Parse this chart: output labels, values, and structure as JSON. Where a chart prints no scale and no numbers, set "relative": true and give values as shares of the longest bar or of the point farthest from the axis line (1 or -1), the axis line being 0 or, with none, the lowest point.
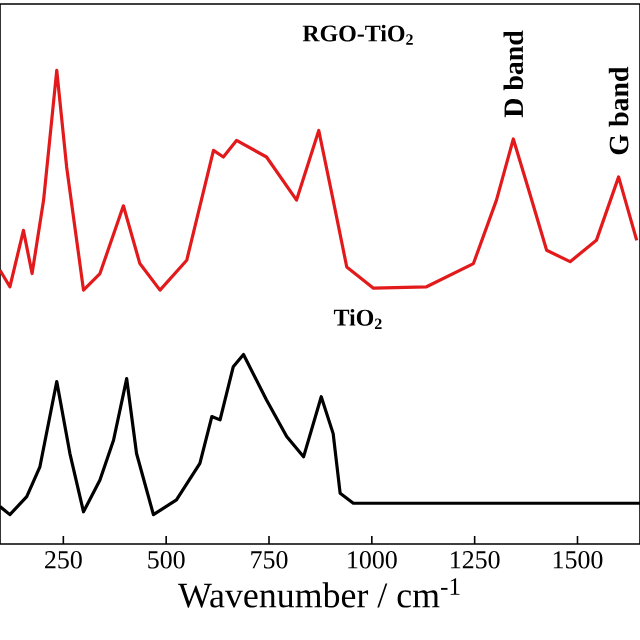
{
  "chart_data": {
    "type": "line",
    "relative": true,
    "xlabel": "Wavenumber / cm$^{-1}$",
    "xlim": [
      96,
      1652
    ],
    "xticks": [
      250,
      500,
      750,
      1000,
      1250,
      1500
    ],
    "series": [
      {
        "name": "**RGO-TiO$_{2}$**",
        "color": "#e31a1c",
        "x": [
          96,
          120,
          153,
          174,
          202,
          234,
          258,
          299,
          339,
          396,
          436,
          485,
          550,
          615,
          639,
          671,
          744,
          817,
          871,
          906,
          939,
          1004,
          1133,
          1247,
          1303,
          1344,
          1384,
          1425,
          1482,
          1546,
          1600,
          1644
        ],
        "values": [
          0.578,
          0.543,
          0.662,
          0.571,
          0.726,
          1.0,
          0.796,
          0.536,
          0.571,
          0.714,
          0.592,
          0.536,
          0.599,
          0.831,
          0.817,
          0.852,
          0.817,
          0.726,
          0.873,
          0.726,
          0.585,
          0.54,
          0.543,
          0.592,
          0.726,
          0.855,
          0.74,
          0.62,
          0.596,
          0.641,
          0.775,
          0.641
        ]
      },
      {
        "name": "**TiO$_{2}$**",
        "color": "#000000",
        "x": [
          96,
          120,
          161,
          193,
          234,
          266,
          299,
          339,
          372,
          404,
          428,
          469,
          525,
          582,
          611,
          631,
          663,
          688,
          744,
          793,
          834,
          877,
          906,
          923,
          955,
          1652
        ],
        "values": [
          0.079,
          0.062,
          0.1,
          0.163,
          0.343,
          0.191,
          0.068,
          0.135,
          0.219,
          0.349,
          0.191,
          0.062,
          0.093,
          0.17,
          0.269,
          0.262,
          0.374,
          0.4,
          0.304,
          0.227,
          0.184,
          0.311,
          0.233,
          0.107,
          0.086,
          0.086
        ]
      }
    ],
    "annotations": [
      {
        "text": "**D band**",
        "x": 1344,
        "y": 0.855
      },
      {
        "text": "**G band**",
        "x": 1600,
        "y": 0.775
      }
    ]
  }
}
